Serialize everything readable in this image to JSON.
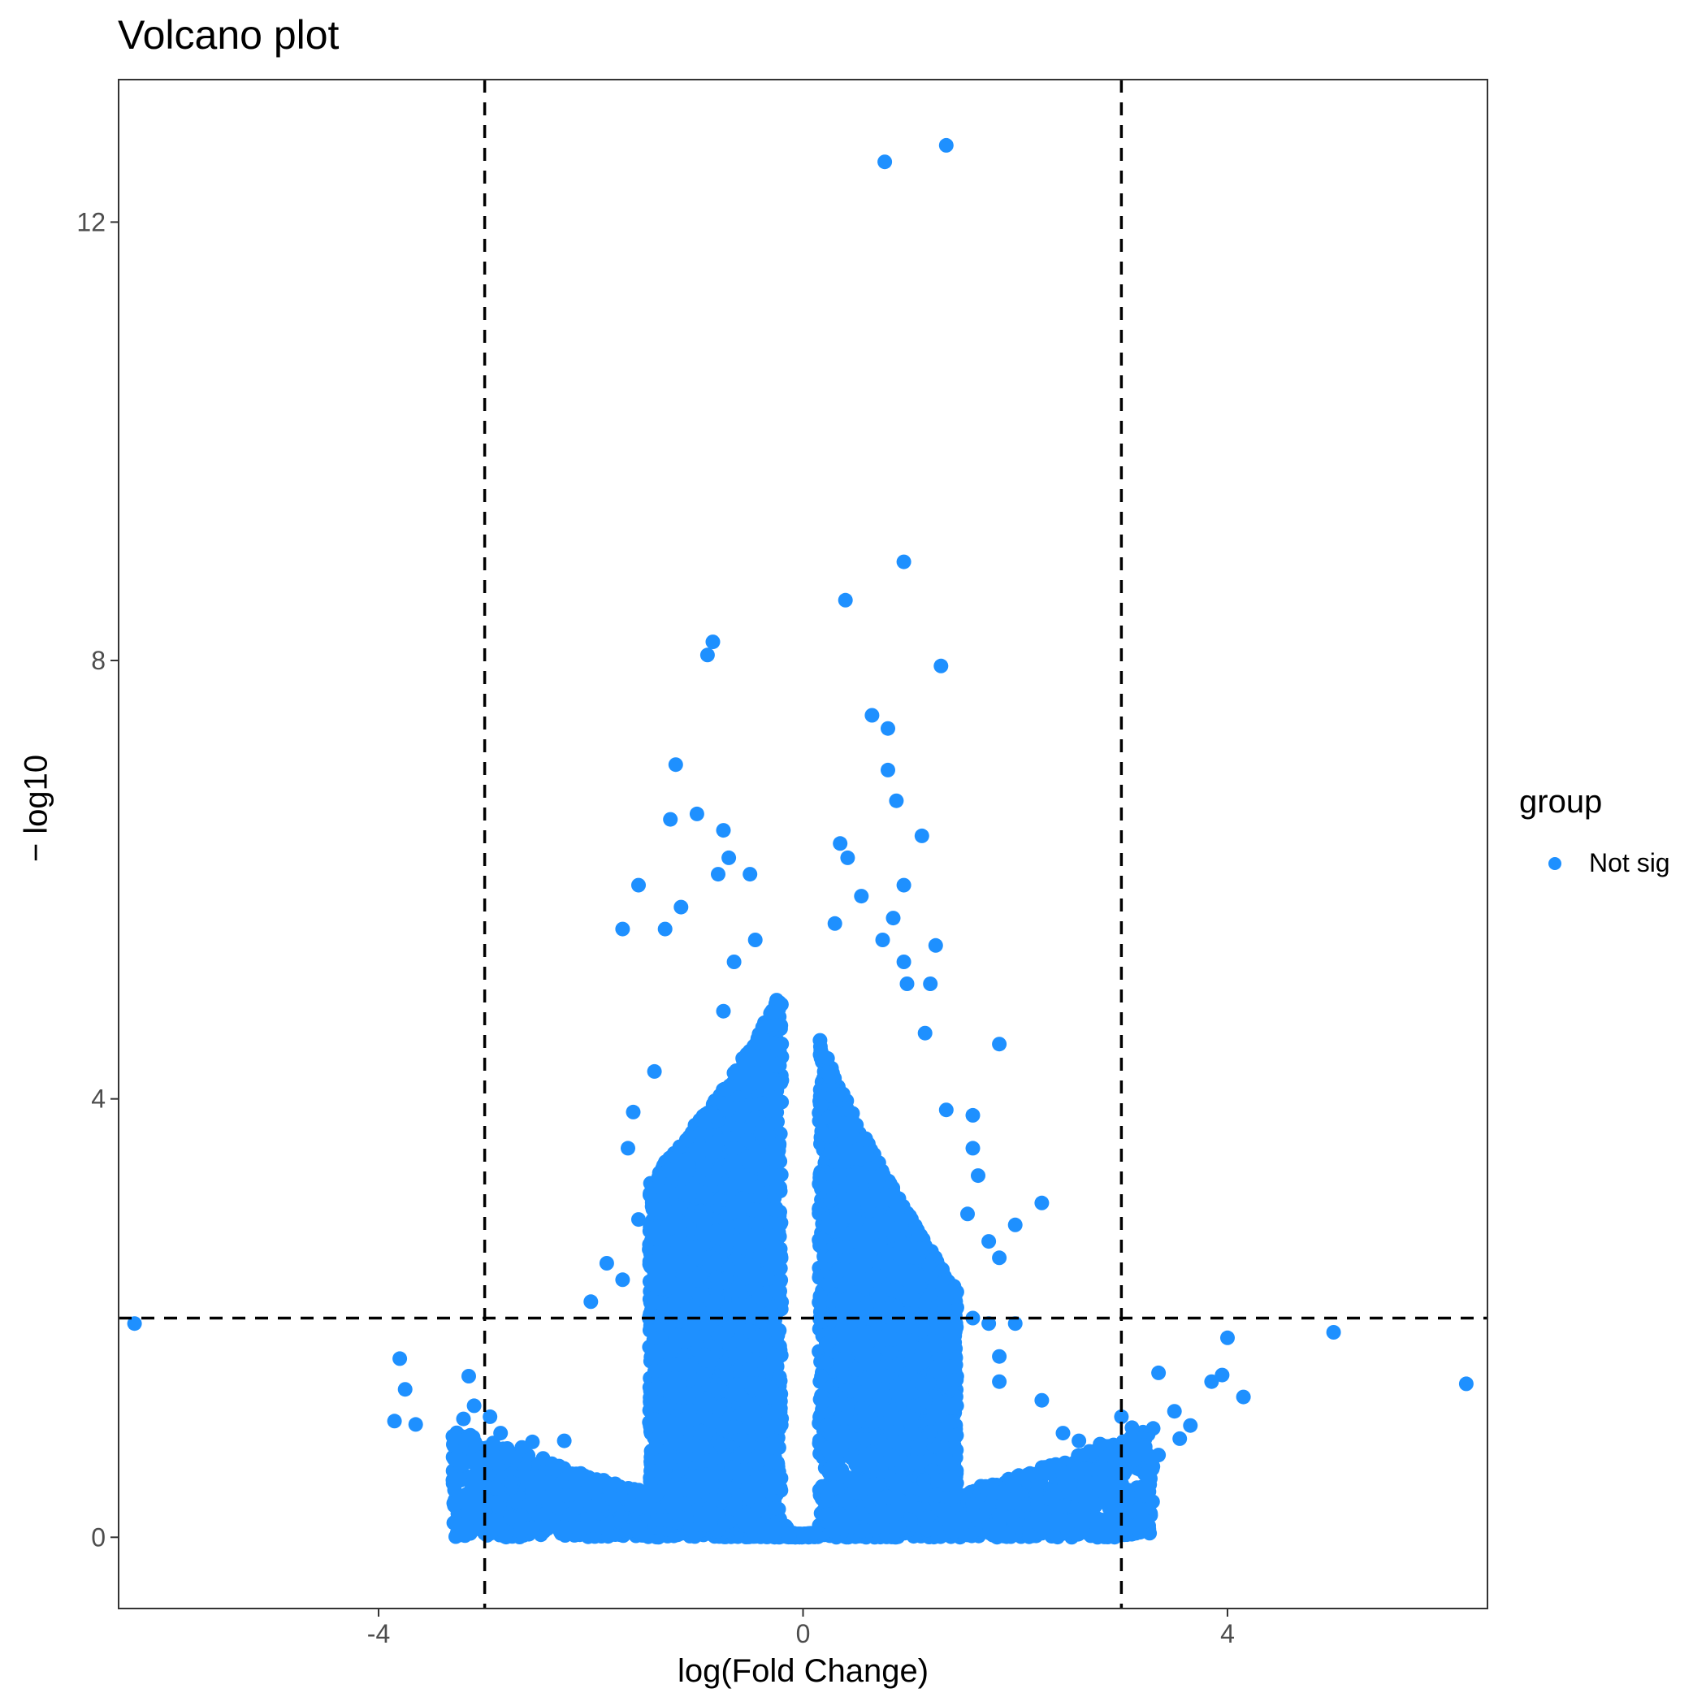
{
  "colors": {
    "point": "#1E90FF",
    "axis": "#333333",
    "tick_text": "#4d4d4d",
    "threshold_line": "#000000"
  },
  "chart_data": {
    "type": "scatter",
    "title": "Volcano plot",
    "xlabel": "log(Fold Change)",
    "ylabel": "− log10",
    "xlim": [
      -6.45,
      6.45
    ],
    "ylim": [
      -0.65,
      13.3
    ],
    "x_ticks": [
      -4,
      0,
      4
    ],
    "y_ticks": [
      0,
      4,
      8,
      12
    ],
    "x_tick_labels": [
      "-4",
      "0",
      "4"
    ],
    "y_tick_labels": [
      "0",
      "4",
      "8",
      "12"
    ],
    "grid": false,
    "legend": {
      "title": "group",
      "placement": "right",
      "entries": [
        {
          "label": "Not sig",
          "color": "#1E90FF"
        }
      ]
    },
    "thresholds": {
      "vertical_x": [
        -3,
        3
      ],
      "horizontal_y": 2
    },
    "series": [
      {
        "name": "Not sig",
        "color": "#1E90FF",
        "points": [
          [
            -6.3,
            1.95
          ],
          [
            -3.8,
            1.63
          ],
          [
            -3.75,
            1.35
          ],
          [
            -3.65,
            1.03
          ],
          [
            -3.85,
            1.06
          ],
          [
            -3.2,
            1.08
          ],
          [
            -3.15,
            1.47
          ],
          [
            -3.1,
            1.2
          ],
          [
            -3.05,
            0.72
          ],
          [
            -2.95,
            1.1
          ],
          [
            -2.85,
            0.95
          ],
          [
            -2.8,
            0.77
          ],
          [
            -2.75,
            0.5
          ],
          [
            -2.65,
            0.82
          ],
          [
            -2.55,
            0.87
          ],
          [
            -2.45,
            0.72
          ],
          [
            -2.3,
            0.65
          ],
          [
            -2.25,
            0.88
          ],
          [
            -2.0,
            2.15
          ],
          [
            -1.85,
            2.5
          ],
          [
            -1.7,
            2.35
          ],
          [
            -1.65,
            3.55
          ],
          [
            -1.6,
            3.88
          ],
          [
            -1.55,
            2.9
          ],
          [
            -1.4,
            4.25
          ],
          [
            -1.3,
            5.55
          ],
          [
            -1.25,
            6.55
          ],
          [
            -1.2,
            7.05
          ],
          [
            -1.15,
            5.75
          ],
          [
            -1.7,
            5.55
          ],
          [
            -1.55,
            5.95
          ],
          [
            -1.0,
            6.6
          ],
          [
            -0.9,
            8.05
          ],
          [
            -0.85,
            8.17
          ],
          [
            -0.75,
            6.45
          ],
          [
            -0.7,
            6.2
          ],
          [
            -0.8,
            6.05
          ],
          [
            -0.5,
            6.05
          ],
          [
            -0.45,
            5.45
          ],
          [
            -0.65,
            5.25
          ],
          [
            -0.75,
            4.8
          ],
          [
            0.4,
            8.55
          ],
          [
            0.95,
            8.9
          ],
          [
            1.3,
            7.95
          ],
          [
            0.65,
            7.5
          ],
          [
            0.8,
            7.38
          ],
          [
            0.8,
            7.0
          ],
          [
            0.88,
            6.72
          ],
          [
            1.12,
            6.4
          ],
          [
            0.35,
            6.33
          ],
          [
            0.42,
            6.2
          ],
          [
            0.95,
            5.95
          ],
          [
            0.55,
            5.85
          ],
          [
            0.85,
            5.65
          ],
          [
            0.3,
            5.6
          ],
          [
            0.75,
            5.45
          ],
          [
            0.95,
            5.25
          ],
          [
            1.25,
            5.4
          ],
          [
            1.2,
            5.05
          ],
          [
            0.98,
            5.05
          ],
          [
            1.85,
            4.5
          ],
          [
            1.15,
            4.6
          ],
          [
            1.35,
            3.9
          ],
          [
            1.6,
            3.85
          ],
          [
            1.6,
            3.55
          ],
          [
            1.65,
            3.3
          ],
          [
            1.55,
            2.95
          ],
          [
            1.75,
            2.7
          ],
          [
            2.0,
            2.85
          ],
          [
            2.25,
            3.05
          ],
          [
            1.85,
            2.55
          ],
          [
            1.6,
            2.0
          ],
          [
            1.75,
            1.95
          ],
          [
            2.0,
            1.95
          ],
          [
            1.85,
            1.65
          ],
          [
            1.85,
            1.42
          ],
          [
            0.77,
            12.55
          ],
          [
            1.35,
            12.7
          ],
          [
            2.25,
            1.25
          ],
          [
            2.45,
            0.95
          ],
          [
            2.6,
            0.88
          ],
          [
            2.8,
            0.85
          ],
          [
            3.0,
            1.1
          ],
          [
            3.1,
            1.0
          ],
          [
            3.35,
            1.5
          ],
          [
            3.35,
            0.75
          ],
          [
            3.5,
            1.15
          ],
          [
            3.55,
            0.9
          ],
          [
            3.65,
            1.02
          ],
          [
            3.85,
            1.42
          ],
          [
            3.95,
            1.48
          ],
          [
            4.0,
            1.82
          ],
          [
            4.15,
            1.28
          ],
          [
            5.0,
            1.87
          ],
          [
            6.25,
            1.4
          ],
          [
            3.25,
            0.6
          ],
          [
            2.9,
            0.62
          ],
          [
            2.5,
            0.5
          ],
          [
            2.2,
            0.4
          ],
          [
            1.9,
            0.35
          ],
          [
            1.6,
            0.3
          ],
          [
            1.3,
            0.25
          ],
          [
            -1.5,
            0.28
          ],
          [
            -1.8,
            0.35
          ],
          [
            -2.1,
            0.4
          ],
          [
            -2.4,
            0.5
          ],
          [
            -2.6,
            0.55
          ],
          [
            -1.2,
            0.22
          ]
        ]
      }
    ],
    "dense_regions": [
      {
        "x": [
          -1.45,
          -0.2
        ],
        "y_max_at_inner": 5.0,
        "y_max_at_outer": 3.2
      },
      {
        "x": [
          0.15,
          1.45
        ],
        "y_max_at_inner": 4.6,
        "y_max_at_outer": 2.2
      }
    ]
  }
}
